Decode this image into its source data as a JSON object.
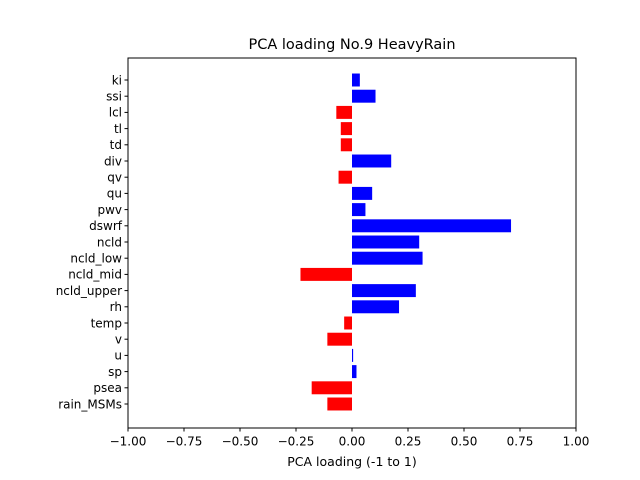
{
  "chart_data": {
    "type": "bar",
    "orientation": "horizontal",
    "title": "PCA loading No.9 HeavyRain",
    "xlabel": "PCA loading (-1 to 1)",
    "ylabel": "",
    "xlim": [
      -1.0,
      1.0
    ],
    "xticks": [
      -1.0,
      -0.75,
      -0.5,
      -0.25,
      0.0,
      0.25,
      0.5,
      0.75,
      1.0
    ],
    "xtick_labels": [
      "−1.00",
      "−0.75",
      "−0.50",
      "−0.25",
      "0.00",
      "0.25",
      "0.50",
      "0.75",
      "1.00"
    ],
    "grid": false,
    "legend": "none",
    "colors": {
      "positive": "#0000ff",
      "negative": "#ff0000"
    },
    "categories": [
      "ki",
      "ssi",
      "lcl",
      "tl",
      "td",
      "div",
      "qv",
      "qu",
      "pwv",
      "dswrf",
      "ncld",
      "ncld_low",
      "ncld_mid",
      "ncld_upper",
      "rh",
      "temp",
      "v",
      "u",
      "sp",
      "psea",
      "rain_MSMs"
    ],
    "values": [
      0.035,
      0.105,
      -0.07,
      -0.05,
      -0.05,
      0.175,
      -0.06,
      0.09,
      0.06,
      0.71,
      0.3,
      0.315,
      -0.23,
      0.285,
      0.21,
      -0.035,
      -0.11,
      0.005,
      0.02,
      -0.18,
      -0.11
    ]
  }
}
